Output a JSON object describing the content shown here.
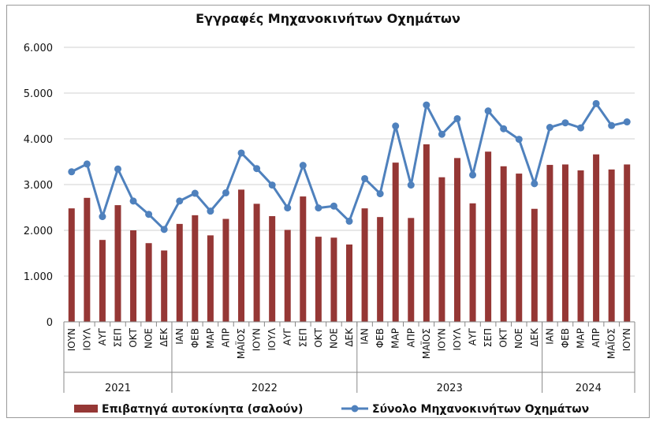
{
  "chart_data": {
    "type": "bar",
    "title": "Εγγραφές Μηχανοκινήτων Οχημάτων",
    "categories": [
      "ΙΟΥΝ",
      "ΙΟΥΛ",
      "ΑΥΓ",
      "ΣΕΠ",
      "ΟΚΤ",
      "ΝΟΕ",
      "ΔΕΚ",
      "ΙΑΝ",
      "ΦΕΒ",
      "ΜΑΡ",
      "ΑΠΡ",
      "ΜΑΪΟΣ",
      "ΙΟΥΝ",
      "ΙΟΥΛ",
      "ΑΥΓ",
      "ΣΕΠ",
      "ΟΚΤ",
      "ΝΟΕ",
      "ΔΕΚ",
      "ΙΑΝ",
      "ΦΕΒ",
      "ΜΑΡ",
      "ΑΠΡ",
      "ΜΑΪΟΣ",
      "ΙΟΥΝ",
      "ΙΟΥΛ",
      "ΑΥΓ",
      "ΣΕΠ",
      "ΟΚΤ",
      "ΝΟΕ",
      "ΔΕΚ",
      "ΙΑΝ",
      "ΦΕΒ",
      "ΜΑΡ",
      "ΑΠΡ",
      "ΜΑΪΟΣ",
      "ΙΟΥΝ"
    ],
    "year_groups": [
      {
        "label": "2021",
        "start": 0,
        "count": 7
      },
      {
        "label": "2022",
        "start": 7,
        "count": 12
      },
      {
        "label": "2023",
        "start": 19,
        "count": 12
      },
      {
        "label": "2024",
        "start": 31,
        "count": 6
      }
    ],
    "series": [
      {
        "name": "Επιβατηγά αυτοκίνητα (σαλούν)",
        "kind": "bar",
        "color": "#953735",
        "values": [
          2480,
          2710,
          1790,
          2550,
          2000,
          1720,
          1560,
          2140,
          2330,
          1890,
          2250,
          2890,
          2580,
          2310,
          2010,
          2740,
          1860,
          1840,
          1690,
          2480,
          2290,
          3480,
          2270,
          3880,
          3160,
          3580,
          2590,
          3720,
          3400,
          3240,
          2470,
          3430,
          3440,
          3310,
          3660,
          3330,
          3440
        ]
      },
      {
        "name": "Σύνολο Μηχανοκινήτων Οχημάτων",
        "kind": "line",
        "color": "#4f81bd",
        "values": [
          3280,
          3450,
          2300,
          3340,
          2640,
          2350,
          2020,
          2640,
          2810,
          2420,
          2820,
          3690,
          3350,
          2990,
          2490,
          3420,
          2490,
          2530,
          2200,
          3130,
          2800,
          4280,
          2990,
          4740,
          4100,
          4440,
          3210,
          4610,
          4220,
          3990,
          3020,
          4250,
          4350,
          4240,
          4770,
          4290,
          4370
        ]
      }
    ],
    "ylim": [
      0,
      6000
    ],
    "yticks": [
      0,
      1000,
      2000,
      3000,
      4000,
      5000,
      6000
    ],
    "ytick_labels": [
      "0",
      "1.000",
      "2.000",
      "3.000",
      "4.000",
      "5.000",
      "6.000"
    ],
    "grid": true,
    "legend_position": "bottom"
  }
}
